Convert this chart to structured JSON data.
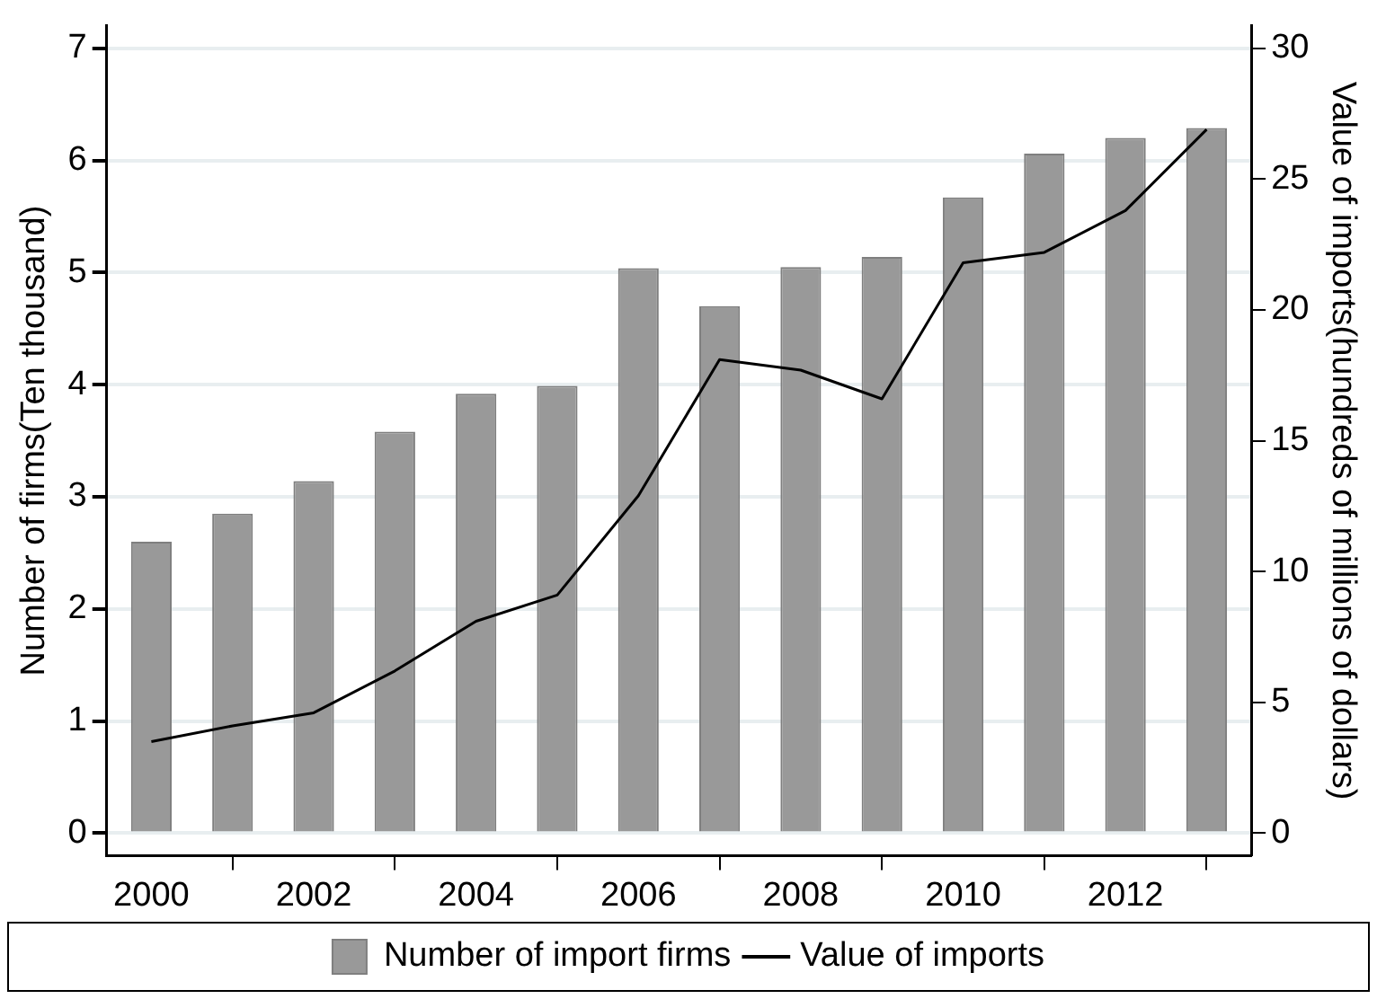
{
  "chart_data": {
    "type": "bar",
    "ylabel": "Number of firms(Ten thousand)",
    "y2label": "Value of imports(hundreds of millions of dollars)",
    "x": [
      2000,
      2001,
      2002,
      2003,
      2004,
      2005,
      2006,
      2007,
      2008,
      2009,
      2010,
      2011,
      2012,
      2013
    ],
    "xlim": [
      1999.45,
      2013.55
    ],
    "xticks": [
      2000,
      2002,
      2004,
      2006,
      2008,
      2010,
      2012
    ],
    "ylim": [
      -0.2,
      7.2
    ],
    "yticks": [
      0,
      1,
      2,
      3,
      4,
      5,
      6,
      7
    ],
    "y2lim": [
      -0.86,
      30.86
    ],
    "y2ticks": [
      0,
      5,
      10,
      15,
      20,
      25,
      30
    ],
    "series": [
      {
        "name": "Number of import firms",
        "color": "#999999",
        "values": [
          2.6,
          2.85,
          3.14,
          3.58,
          3.92,
          3.99,
          5.04,
          4.7,
          5.05,
          5.14,
          5.67,
          6.06,
          6.2,
          6.29
        ]
      },
      {
        "name": "Value of imports",
        "type": "line",
        "axis": "y2",
        "color": "#000000",
        "values": [
          3.5,
          4.1,
          4.6,
          6.2,
          8.1,
          9.1,
          12.9,
          18.1,
          17.7,
          16.6,
          21.8,
          22.2,
          23.8,
          26.9
        ]
      }
    ],
    "grid": "y",
    "legend": "bottom",
    "marker": "none",
    "line_style": "solid"
  }
}
